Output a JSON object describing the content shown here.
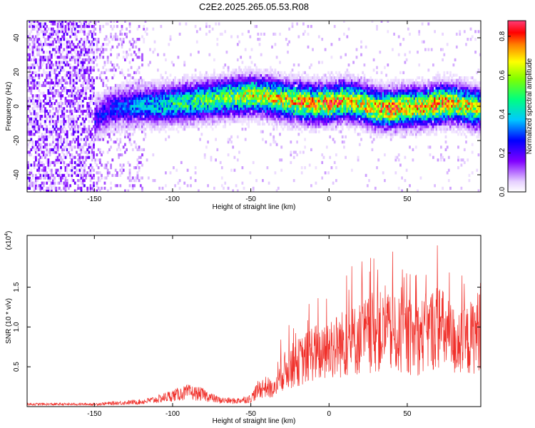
{
  "title": "C2E2.2025.265.05.53.R08",
  "colors": {
    "snr_line": "#f0302a",
    "axis": "#000000",
    "background": "#ffffff"
  },
  "chart_data": [
    {
      "type": "heatmap",
      "xlabel": "Height of straight line (km)",
      "ylabel": "Frequency (Hz)",
      "xlim": [
        -193,
        97
      ],
      "ylim": [
        -50,
        50
      ],
      "x_ticks": [
        "-150",
        "-100",
        "-50",
        "0",
        "50"
      ],
      "x_tick_values": [
        -150,
        -100,
        -50,
        0,
        50
      ],
      "y_ticks": [
        "-40",
        "-20",
        "0",
        "20",
        "40"
      ],
      "y_tick_values": [
        -40,
        -20,
        0,
        20,
        40
      ],
      "colorbar": {
        "label": "Normalized spectral amplitude",
        "range": [
          0.0,
          0.88
        ],
        "ticks": [
          "0.0",
          "0.2",
          "0.4",
          "0.6",
          "0.8"
        ],
        "tick_values": [
          0.0,
          0.2,
          0.4,
          0.6,
          0.8
        ]
      },
      "ridge": {
        "x": [
          -150,
          -140,
          -130,
          -120,
          -110,
          -100,
          -90,
          -80,
          -70,
          -60,
          -50,
          -40,
          -30,
          -20,
          -10,
          0,
          10,
          20,
          30,
          40,
          50,
          60,
          70,
          80,
          90,
          97
        ],
        "center_freq_hz": [
          -8,
          -2,
          -1,
          0,
          0,
          1,
          2,
          3,
          4,
          5,
          6,
          5,
          3,
          2,
          1,
          1,
          3,
          1,
          -2,
          -2,
          -1,
          -1,
          1,
          1,
          -1,
          -2
        ],
        "peak_amplitude": [
          0.25,
          0.3,
          0.35,
          0.4,
          0.45,
          0.5,
          0.55,
          0.6,
          0.6,
          0.65,
          0.7,
          0.7,
          0.75,
          0.8,
          0.8,
          0.85,
          0.8,
          0.75,
          0.8,
          0.85,
          0.8,
          0.8,
          0.85,
          0.8,
          0.75,
          0.7
        ]
      }
    },
    {
      "type": "line",
      "xlabel": "Height of straight line (km)",
      "ylabel": "SNR (10 * v/v)",
      "y_multiplier": "(x10",
      "y_multiplier_exp": "4",
      "y_multiplier_close": ")",
      "xlim": [
        -193,
        97
      ],
      "ylim": [
        0,
        2.15
      ],
      "x_ticks": [
        "-150",
        "-100",
        "-50",
        "0",
        "50"
      ],
      "x_tick_values": [
        -150,
        -100,
        -50,
        0,
        50
      ],
      "y_ticks": [
        "0.5",
        "1.0",
        "1.5"
      ],
      "y_tick_values": [
        0.5,
        1.0,
        1.5
      ],
      "series": [
        {
          "x": [
            -193,
            -180,
            -170,
            -160,
            -150,
            -140,
            -130,
            -120,
            -110,
            -100,
            -90,
            -80,
            -75,
            -70,
            -60,
            -50,
            -45,
            -40,
            -35,
            -30,
            -25,
            -20,
            -15,
            -10,
            -5,
            0,
            5,
            10,
            15,
            20,
            25,
            30,
            35,
            40,
            45,
            50,
            55,
            60,
            65,
            70,
            75,
            80,
            85,
            90,
            95,
            97
          ],
          "values": [
            0.03,
            0.03,
            0.03,
            0.03,
            0.03,
            0.04,
            0.05,
            0.06,
            0.09,
            0.14,
            0.18,
            0.15,
            0.11,
            0.08,
            0.07,
            0.1,
            0.22,
            0.25,
            0.2,
            0.42,
            0.5,
            0.55,
            0.6,
            0.7,
            0.62,
            0.72,
            0.76,
            0.8,
            0.82,
            0.86,
            0.9,
            0.95,
            0.92,
            0.9,
            0.88,
            0.86,
            0.84,
            0.9,
            0.96,
            1.02,
            0.9,
            0.82,
            0.78,
            0.85,
            0.95,
            1.05
          ]
        }
      ]
    }
  ]
}
